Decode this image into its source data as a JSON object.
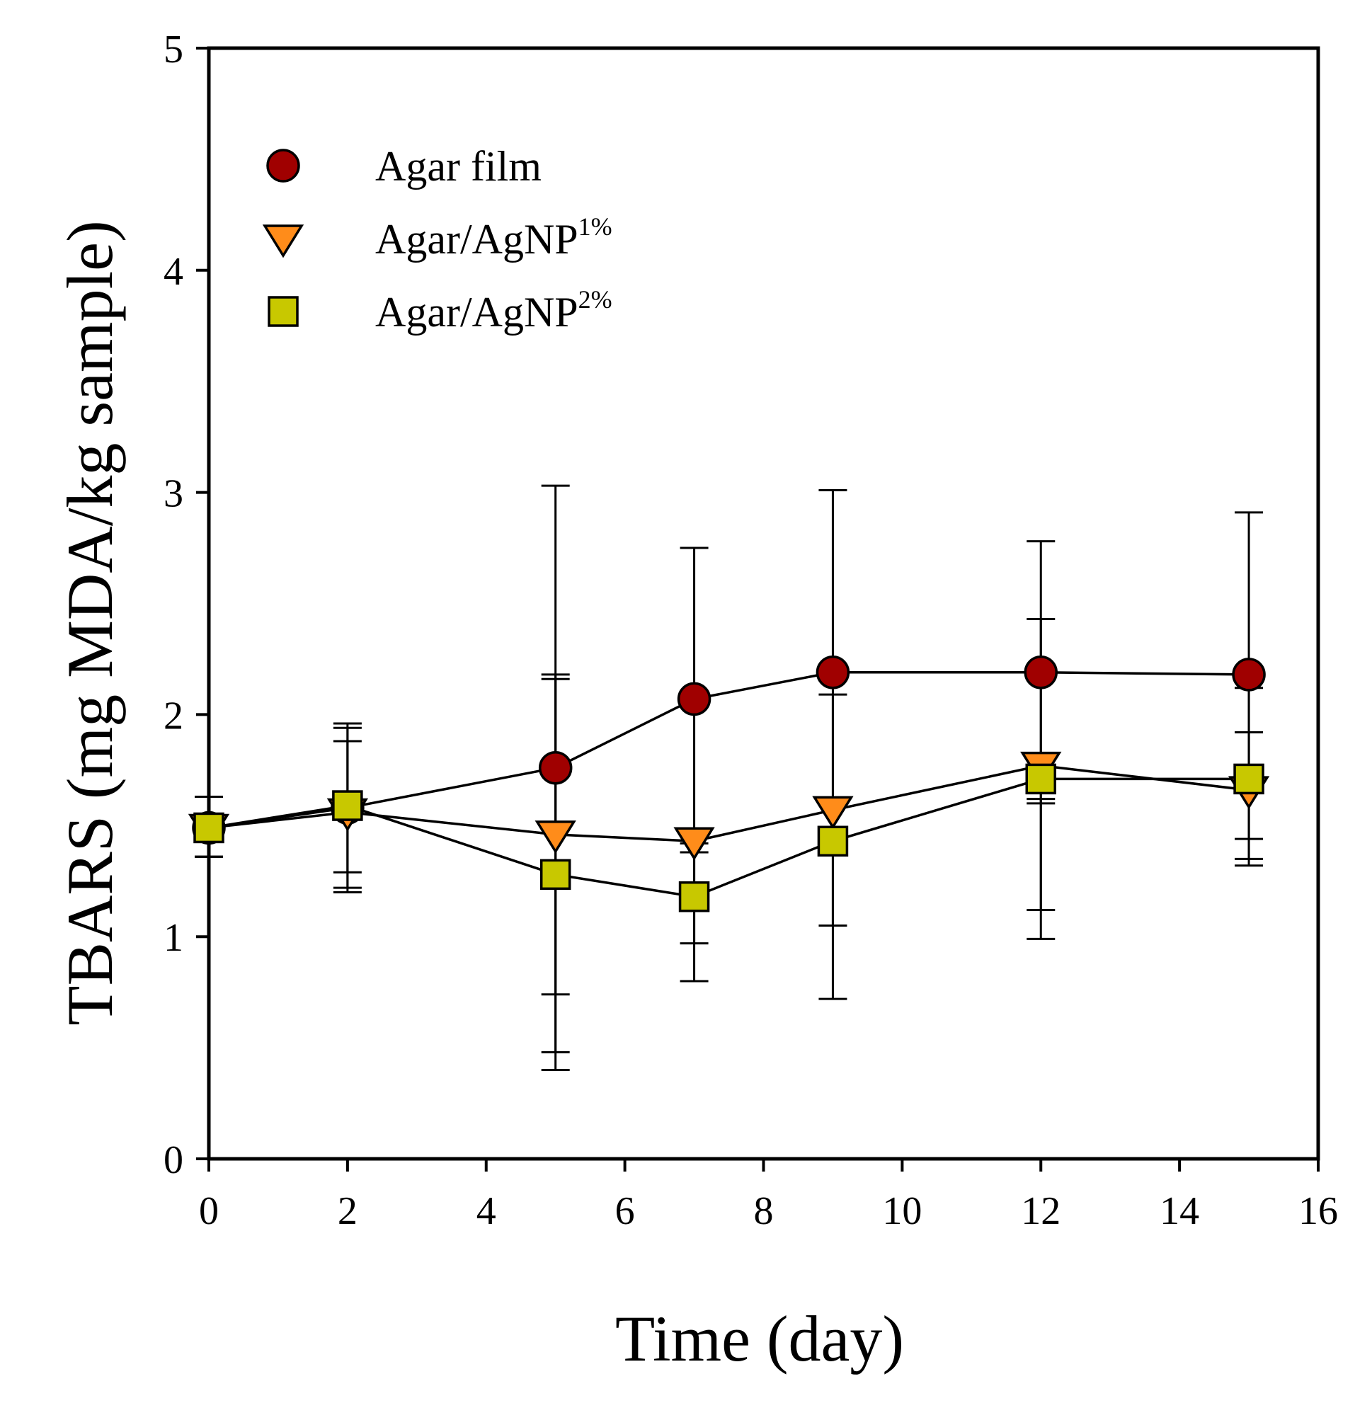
{
  "chart_data": {
    "type": "line",
    "title": "",
    "xlabel": "Time (day)",
    "ylabel": "TBARS (mg MDA/kg sample)",
    "xlim": [
      0,
      16
    ],
    "ylim": [
      0,
      5
    ],
    "xticks": [
      0,
      2,
      4,
      6,
      8,
      10,
      12,
      14,
      16
    ],
    "yticks": [
      0,
      1,
      2,
      3,
      4,
      5
    ],
    "xtick_labels": [
      "0",
      "2",
      "4",
      "6",
      "8",
      "10",
      "12",
      "14",
      "16"
    ],
    "ytick_labels": [
      "0",
      "1",
      "2",
      "3",
      "4",
      "5"
    ],
    "grid": false,
    "legend_position": "top-left",
    "x": [
      0,
      2,
      5,
      7,
      9,
      12,
      15
    ],
    "series": [
      {
        "name": "Agar film",
        "legend_base": "Agar film",
        "legend_sup": "",
        "marker": "circle",
        "color": "#a00000",
        "values": [
          1.49,
          1.58,
          1.76,
          2.07,
          2.19,
          2.19,
          2.18
        ],
        "err_low": [
          1.36,
          1.22,
          0.48,
          0.97,
          0.72,
          1.6,
          1.44
        ],
        "err_high": [
          1.63,
          1.94,
          3.03,
          2.75,
          3.01,
          2.78,
          2.91
        ]
      },
      {
        "name": "Agar/AgNP1%",
        "legend_base": "Agar/AgNP",
        "legend_sup": "1%",
        "marker": "triangle-down",
        "color": "#ff8c1a",
        "values": [
          1.49,
          1.56,
          1.46,
          1.43,
          1.57,
          1.77,
          1.66
        ],
        "err_low": [
          1.36,
          1.2,
          0.74,
          1.38,
          1.05,
          1.12,
          1.32
        ],
        "err_high": [
          1.63,
          1.88,
          2.18,
          1.42,
          2.09,
          2.43,
          1.92
        ]
      },
      {
        "name": "Agar/AgNP2%",
        "legend_base": "Agar/AgNP",
        "legend_sup": "2%",
        "marker": "square",
        "color": "#c8c800",
        "values": [
          1.49,
          1.59,
          1.28,
          1.18,
          1.43,
          1.71,
          1.71
        ],
        "err_low": [
          1.36,
          1.29,
          0.4,
          0.8,
          1.37,
          0.99,
          1.35
        ],
        "err_high": [
          1.63,
          1.96,
          2.16,
          1.38,
          1.37,
          1.62,
          2.12
        ]
      }
    ]
  }
}
